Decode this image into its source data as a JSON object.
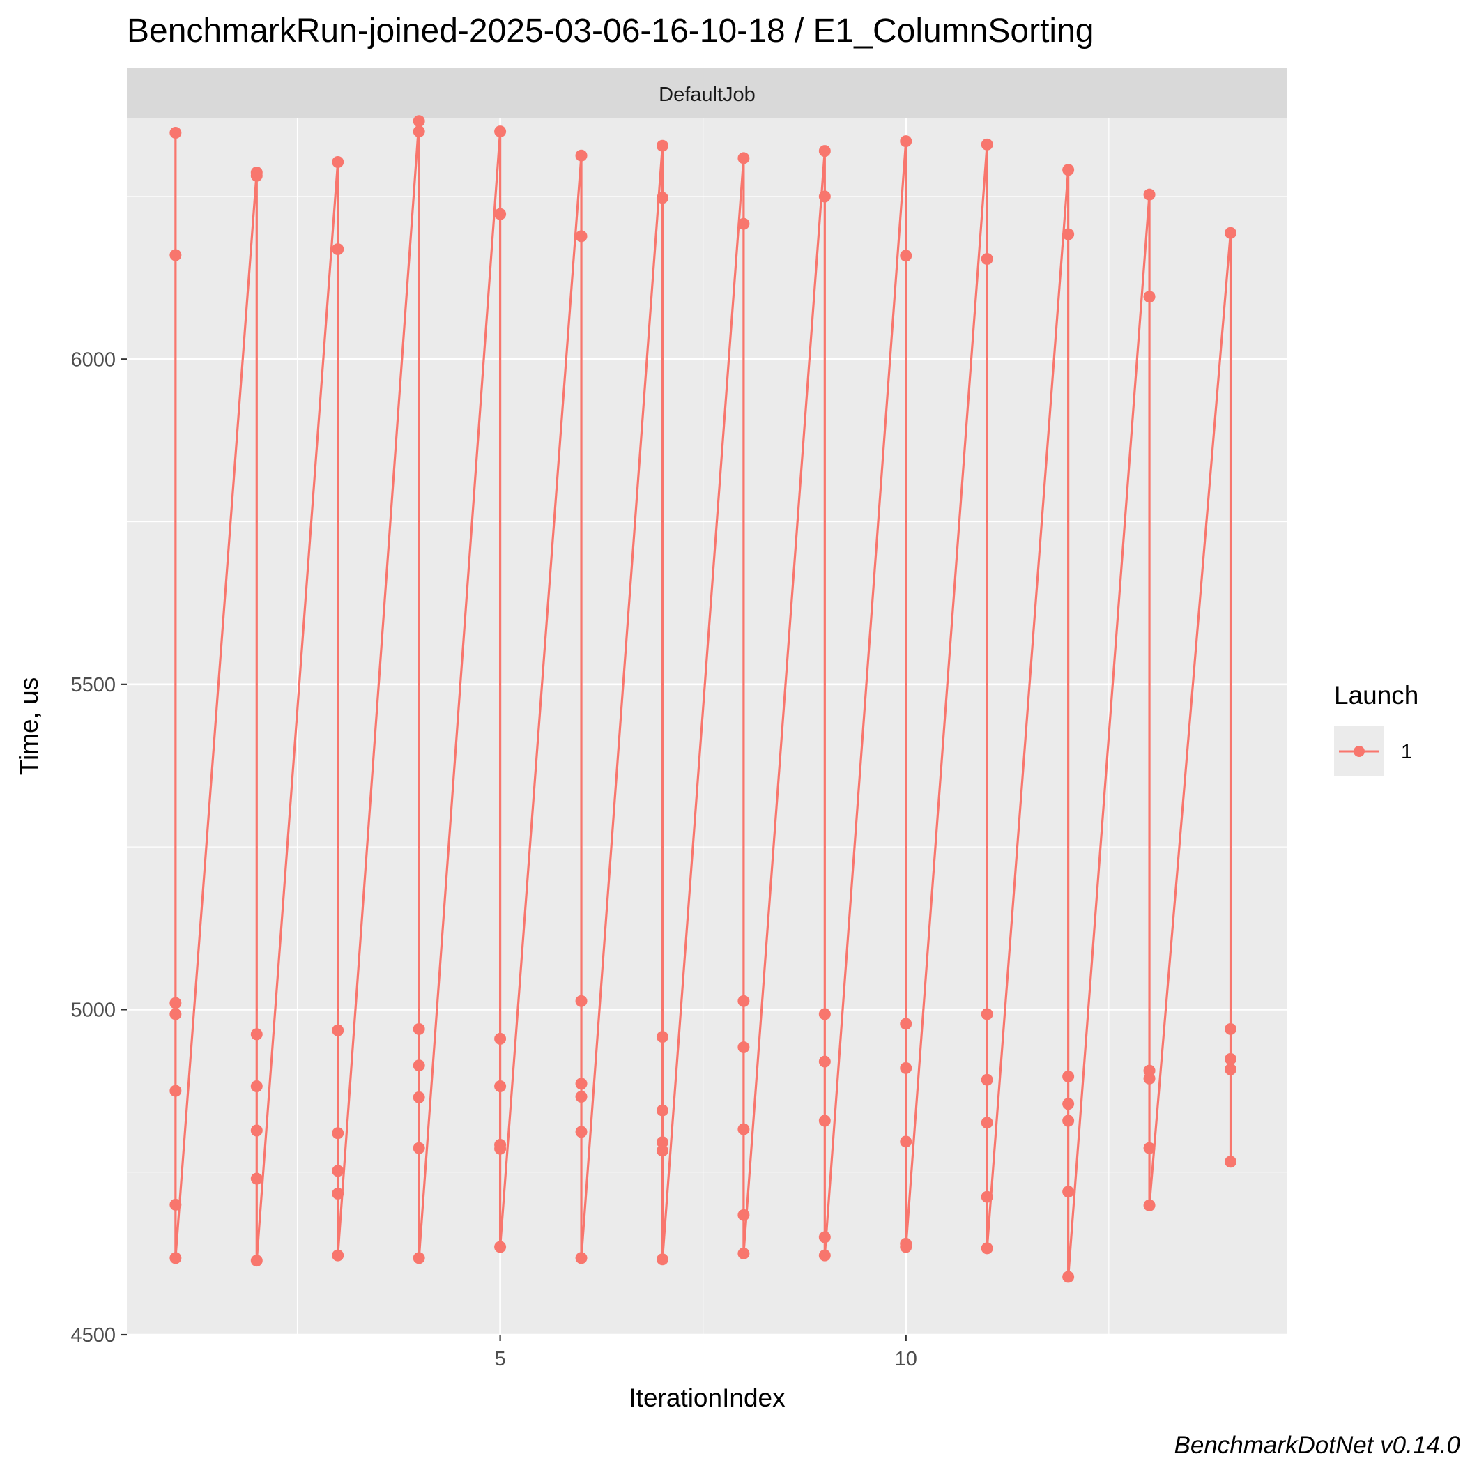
{
  "chart_data": {
    "type": "line",
    "title": "BenchmarkRun-joined-2025-03-06-16-10-18 / E1_ColumnSorting",
    "facet_label": "DefaultJob",
    "xlabel": "IterationIndex",
    "ylabel": "Time, us",
    "caption": "BenchmarkDotNet v0.14.0",
    "xlim": [
      0.4,
      14.7
    ],
    "ylim": [
      4500,
      6370
    ],
    "x_ticks": [
      5,
      10
    ],
    "x_tick_labels": [
      "5",
      "10"
    ],
    "y_ticks": [
      4500,
      5000,
      5500,
      6000
    ],
    "y_tick_labels": [
      "4500",
      "5000",
      "5500",
      "6000"
    ],
    "grid": true,
    "legend": {
      "title": "Launch",
      "position": "right",
      "entries": [
        "1"
      ]
    },
    "colors": {
      "series": "#F8766D",
      "panel": "#EBEBEB",
      "strip": "#D9D9D9",
      "grid": "#FFFFFF"
    },
    "series": [
      {
        "name": "1",
        "points": [
          [
            1,
            6348
          ],
          [
            1,
            6160
          ],
          [
            1,
            5010
          ],
          [
            1,
            4993
          ],
          [
            1,
            4875
          ],
          [
            1,
            4700
          ],
          [
            1,
            4618
          ],
          [
            2,
            6287
          ],
          [
            2,
            6282
          ],
          [
            2,
            4962
          ],
          [
            2,
            4882
          ],
          [
            2,
            4814
          ],
          [
            2,
            4740
          ],
          [
            2,
            4614
          ],
          [
            3,
            6303
          ],
          [
            3,
            6169
          ],
          [
            3,
            4968
          ],
          [
            3,
            4810
          ],
          [
            3,
            4752
          ],
          [
            3,
            4717
          ],
          [
            3,
            4622
          ],
          [
            4,
            6366
          ],
          [
            4,
            6350
          ],
          [
            4,
            4970
          ],
          [
            4,
            4914
          ],
          [
            4,
            4865
          ],
          [
            4,
            4787
          ],
          [
            4,
            4618
          ],
          [
            5,
            6350
          ],
          [
            5,
            6223
          ],
          [
            5,
            4955
          ],
          [
            5,
            4882
          ],
          [
            5,
            4792
          ],
          [
            5,
            4786
          ],
          [
            5,
            4635
          ],
          [
            6,
            6313
          ],
          [
            6,
            6189
          ],
          [
            6,
            5013
          ],
          [
            6,
            4886
          ],
          [
            6,
            4866
          ],
          [
            6,
            4812
          ],
          [
            6,
            4618
          ],
          [
            7,
            6328
          ],
          [
            7,
            6248
          ],
          [
            7,
            4958
          ],
          [
            7,
            4845
          ],
          [
            7,
            4796
          ],
          [
            7,
            4783
          ],
          [
            7,
            4616
          ],
          [
            8,
            6309
          ],
          [
            8,
            6208
          ],
          [
            8,
            5013
          ],
          [
            8,
            4942
          ],
          [
            8,
            4816
          ],
          [
            8,
            4684
          ],
          [
            8,
            4625
          ],
          [
            9,
            6320
          ],
          [
            9,
            6250
          ],
          [
            9,
            4993
          ],
          [
            9,
            4920
          ],
          [
            9,
            4829
          ],
          [
            9,
            4650
          ],
          [
            9,
            4622
          ],
          [
            10,
            6335
          ],
          [
            10,
            6159
          ],
          [
            10,
            4978
          ],
          [
            10,
            4910
          ],
          [
            10,
            4797
          ],
          [
            10,
            4640
          ],
          [
            10,
            4635
          ],
          [
            11,
            6330
          ],
          [
            11,
            6154
          ],
          [
            11,
            4993
          ],
          [
            11,
            4892
          ],
          [
            11,
            4826
          ],
          [
            11,
            4712
          ],
          [
            11,
            4633
          ],
          [
            12,
            6291
          ],
          [
            12,
            6192
          ],
          [
            12,
            4897
          ],
          [
            12,
            4855
          ],
          [
            12,
            4829
          ],
          [
            12,
            4720
          ],
          [
            12,
            4589
          ],
          [
            13,
            6253
          ],
          [
            13,
            6096
          ],
          [
            13,
            4906
          ],
          [
            13,
            4894
          ],
          [
            13,
            4787
          ],
          [
            13,
            4699
          ],
          [
            14,
            6194
          ],
          [
            14,
            4970
          ],
          [
            14,
            4924
          ],
          [
            14,
            4908
          ],
          [
            14,
            4766
          ]
        ]
      }
    ]
  }
}
